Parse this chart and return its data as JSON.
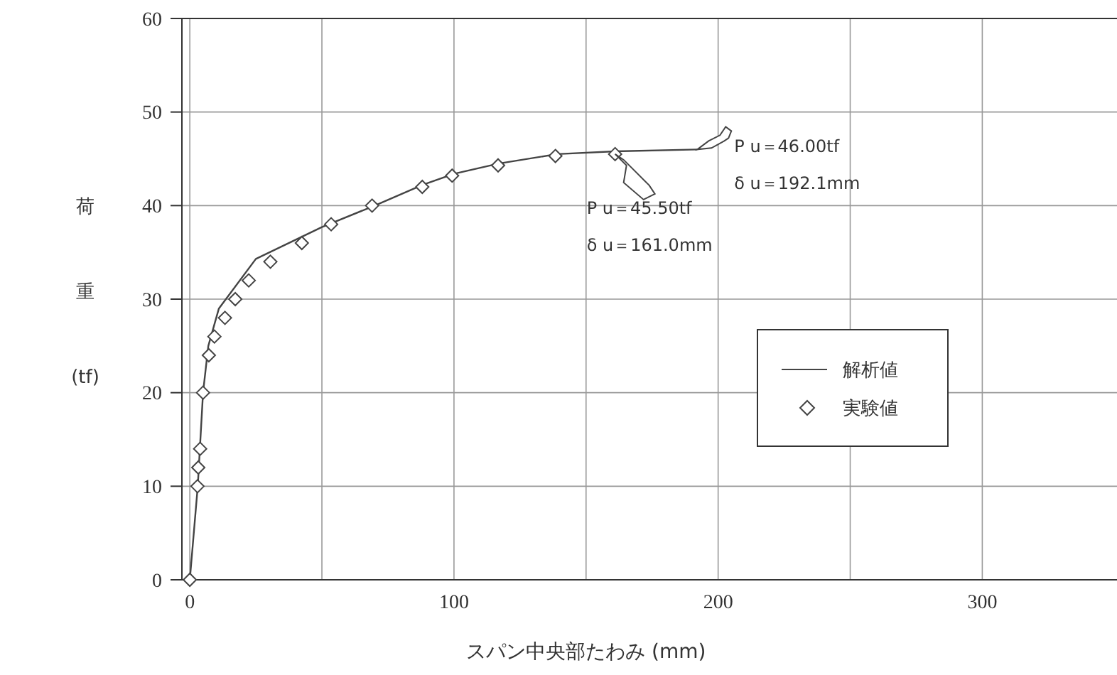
{
  "chart_data": {
    "type": "line",
    "xlabel": "スパン中央部たわみ (mm)",
    "ylabel": "荷重(tf)",
    "xlim": [
      -3,
      351
    ],
    "ylim": [
      0,
      60
    ],
    "xticks": [
      0,
      {
        "value": 50,
        "label": null
      },
      100,
      {
        "value": 150,
        "label": null
      },
      200,
      {
        "value": 250,
        "label": null
      },
      300
    ],
    "yticks": [
      0,
      10,
      20,
      30,
      40,
      50,
      60
    ],
    "grid": true,
    "legend": "right",
    "series": [
      {
        "name": "解析値",
        "color": "#444444",
        "marker": "none",
        "line_style": "solid",
        "x": [
          0,
          3,
          5,
          7,
          11,
          25,
          50,
          70,
          88,
          100,
          117,
          139,
          161,
          192.1
        ],
        "values": [
          0,
          10,
          20,
          25,
          29,
          34.3,
          37.7,
          40,
          42.2,
          43.4,
          44.5,
          45.5,
          45.8,
          46.0
        ]
      },
      {
        "name": "実験値",
        "type": "scatter",
        "color": "#444444",
        "marker": "diamond",
        "x": [
          0,
          2.9,
          3.2,
          3.9,
          5,
          7.2,
          9.3,
          13.3,
          17.2,
          22.3,
          30.5,
          42.4,
          53.5,
          69,
          88,
          99.3,
          116.7,
          138.4,
          161
        ],
        "values": [
          0,
          10,
          12,
          14,
          20,
          24,
          26,
          28,
          30,
          32,
          34,
          36,
          38,
          40,
          42,
          43.2,
          44.3,
          45.3,
          45.5
        ]
      }
    ],
    "annotations": [
      {
        "text": "P u＝46.00tf\nδ u＝192.1mm",
        "x": 192.1,
        "y": 46.0
      },
      {
        "text": "P u＝45.50tf\nδ u＝161.0mm",
        "x": 161,
        "y": 45.5
      }
    ]
  }
}
